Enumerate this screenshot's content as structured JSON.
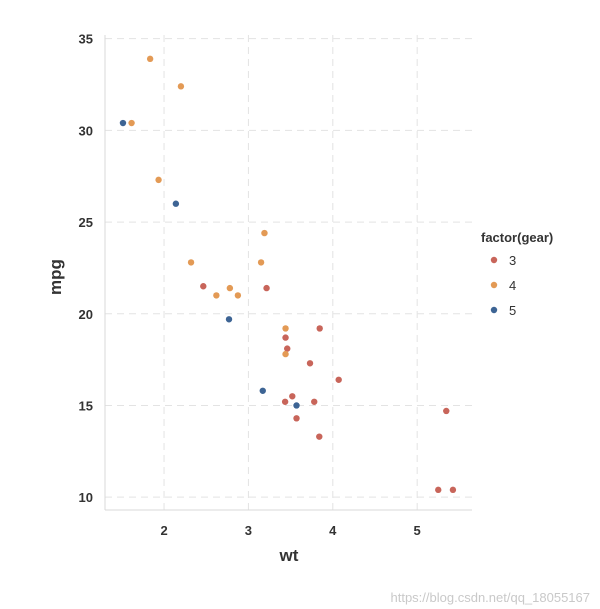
{
  "chart_data": {
    "type": "scatter",
    "xlabel": "wt",
    "ylabel": "mpg",
    "xlim": [
      1.3,
      5.65
    ],
    "ylim": [
      9.3,
      35.2
    ],
    "x_ticks": [
      2,
      3,
      4,
      5
    ],
    "y_ticks": [
      10,
      15,
      20,
      25,
      30,
      35
    ],
    "grid": true,
    "legend_position": "right",
    "legend_title": "factor(gear)",
    "series": [
      {
        "name": "3",
        "color": "#c8655a",
        "points": [
          {
            "x": 2.465,
            "y": 21.5
          },
          {
            "x": 3.215,
            "y": 21.4
          },
          {
            "x": 3.44,
            "y": 18.7
          },
          {
            "x": 3.46,
            "y": 18.1
          },
          {
            "x": 3.57,
            "y": 14.3
          },
          {
            "x": 4.07,
            "y": 16.4
          },
          {
            "x": 3.73,
            "y": 17.3
          },
          {
            "x": 3.78,
            "y": 15.2
          },
          {
            "x": 5.25,
            "y": 10.4
          },
          {
            "x": 5.424,
            "y": 10.4
          },
          {
            "x": 5.345,
            "y": 14.7
          },
          {
            "x": 3.52,
            "y": 15.5
          },
          {
            "x": 3.435,
            "y": 15.2
          },
          {
            "x": 3.84,
            "y": 13.3
          },
          {
            "x": 3.845,
            "y": 19.2
          }
        ]
      },
      {
        "name": "4",
        "color": "#e39a55",
        "points": [
          {
            "x": 2.62,
            "y": 21.0
          },
          {
            "x": 2.875,
            "y": 21.0
          },
          {
            "x": 2.32,
            "y": 22.8
          },
          {
            "x": 3.19,
            "y": 24.4
          },
          {
            "x": 3.15,
            "y": 22.8
          },
          {
            "x": 3.44,
            "y": 19.2
          },
          {
            "x": 3.44,
            "y": 17.8
          },
          {
            "x": 2.2,
            "y": 32.4
          },
          {
            "x": 1.615,
            "y": 30.4
          },
          {
            "x": 1.835,
            "y": 33.9
          },
          {
            "x": 1.935,
            "y": 27.3
          },
          {
            "x": 2.78,
            "y": 21.4
          }
        ]
      },
      {
        "name": "5",
        "color": "#3d6494",
        "points": [
          {
            "x": 2.14,
            "y": 26.0
          },
          {
            "x": 1.513,
            "y": 30.4
          },
          {
            "x": 3.17,
            "y": 15.8
          },
          {
            "x": 2.77,
            "y": 19.7
          },
          {
            "x": 3.57,
            "y": 15.0
          }
        ]
      }
    ]
  },
  "watermark": "https://blog.csdn.net/qq_18055167"
}
